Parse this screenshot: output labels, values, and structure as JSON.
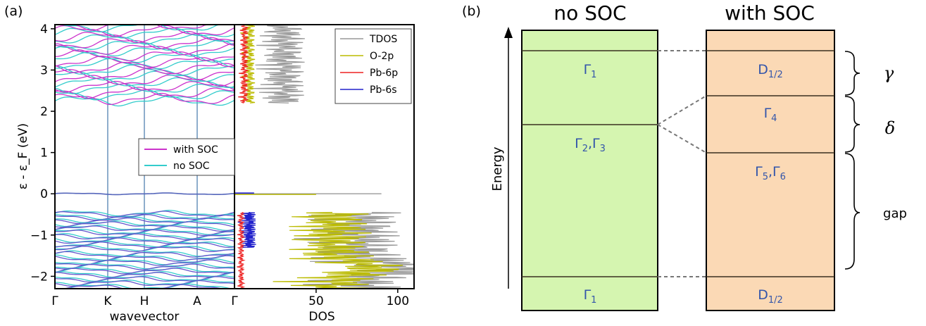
{
  "panel_a": {
    "label": "(a)",
    "ylabel": "ε - ε_F (eV)",
    "xlabel_bands": "wavevector",
    "xlabel_dos": "DOS",
    "kpoint_labels": [
      "Γ",
      "K",
      "H",
      "A",
      "Γ"
    ],
    "ytick_labels": [
      "4",
      "3",
      "2",
      "1",
      "0",
      "−1",
      "−2"
    ],
    "dos_tick_labels": [
      "Γ",
      "50",
      "100"
    ]
  },
  "panel_b": {
    "label": "(b)",
    "title_left": "no SOC",
    "title_right": "with SOC",
    "energy_axis_label": "Energy",
    "left_levels": [
      "Γ1",
      "Γ2,Γ3",
      "Γ1"
    ],
    "right_levels": [
      "D1/2",
      "Γ4",
      "Γ5,Γ6",
      "D1/2"
    ],
    "brace_labels": [
      "γ",
      "δ",
      "gap"
    ],
    "colors": {
      "left_box": "#d5f5b0",
      "right_box": "#fbd9b5",
      "level_text": "#3355aa"
    }
  },
  "chart_data": [
    {
      "type": "line",
      "title": "",
      "xlabel": "wavevector",
      "ylabel": "ε - ε_F (eV)",
      "ylim": [
        -2.3,
        4.1
      ],
      "x_ticks": [
        "Γ",
        "K",
        "H",
        "A",
        "Γ"
      ],
      "series": [
        {
          "name": "with SOC",
          "color": "#cc33cc"
        },
        {
          "name": "no SOC",
          "color": "#33cccc"
        }
      ],
      "legend": "center",
      "band_energies_eV": {
        "flat_band": [
          0.0
        ],
        "valence": [
          -0.47,
          -0.55,
          -0.63,
          -0.72,
          -0.82,
          -0.92,
          -1.02,
          -1.12,
          -1.22,
          -1.32,
          -1.45,
          -1.55,
          -1.65,
          -1.75,
          -1.85,
          -1.95,
          -2.05,
          -2.15,
          -2.25
        ],
        "conduction": [
          2.25,
          2.4,
          2.55,
          2.7,
          2.85,
          3.0,
          3.15,
          3.3,
          3.45,
          3.6,
          3.75,
          3.9,
          4.05
        ]
      }
    },
    {
      "type": "line",
      "title": "",
      "xlabel": "DOS",
      "ylabel": "",
      "xlim": [
        0,
        110
      ],
      "ylim": [
        -2.3,
        4.1
      ],
      "legend": "top-right",
      "series": [
        {
          "name": "TDOS",
          "color": "#999999"
        },
        {
          "name": "O-2p",
          "color": "#bbbb00"
        },
        {
          "name": "Pb-6p",
          "color": "#ee2222"
        },
        {
          "name": "Pb-6s",
          "color": "#2222cc"
        }
      ],
      "peaks": [
        {
          "series": "TDOS",
          "energy": 0.0,
          "value": 90
        },
        {
          "series": "O-2p",
          "energy": 0.0,
          "value": 50
        },
        {
          "series": "TDOS",
          "energy": -1.55,
          "value": 110
        },
        {
          "series": "O-2p",
          "energy": -1.55,
          "value": 100
        },
        {
          "series": "TDOS",
          "energy": 2.25,
          "value": 40
        },
        {
          "series": "Pb-6p",
          "energy": 2.25,
          "value": 8
        }
      ]
    },
    {
      "type": "bar",
      "title": "",
      "xlabel": "",
      "ylabel": "Energy",
      "categories": [
        "no SOC",
        "with SOC"
      ],
      "levels": {
        "no SOC": [
          {
            "label": "Γ1",
            "energy": 1.0
          },
          {
            "label": "Γ2,Γ3",
            "energy": 0.6
          },
          {
            "label": "Γ1",
            "energy": -0.55
          }
        ],
        "with SOC": [
          {
            "label": "D1/2",
            "energy": 1.0
          },
          {
            "label": "Γ4",
            "energy": 0.8
          },
          {
            "label": "Γ5,Γ6",
            "energy": 0.45
          },
          {
            "label": "D1/2",
            "energy": -0.55
          }
        ]
      }
    }
  ]
}
